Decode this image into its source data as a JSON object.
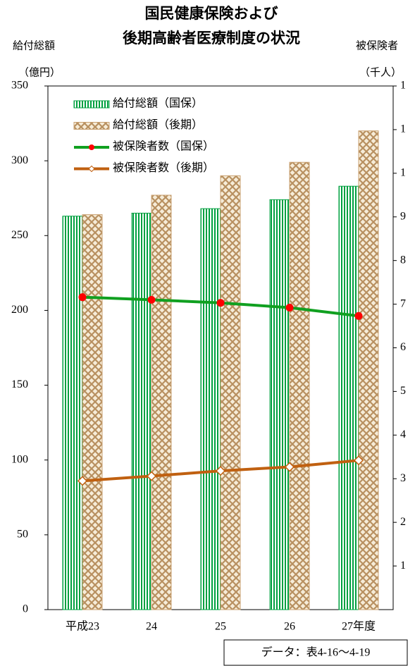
{
  "title": [
    "国民健康保険および",
    "後期高齢者医療制度の状況"
  ],
  "chart_data": {
    "type": "bar",
    "y_label": "給付総額",
    "y_unit": "（億円）",
    "y2_label": "被保険者",
    "y2_unit": "（千人）",
    "categories": [
      "平成23",
      "24",
      "25",
      "26",
      "27年度"
    ],
    "series": [
      {
        "name": "給付総額（国保）",
        "type": "bar",
        "color": "#00a040",
        "values": [
          263,
          265,
          268,
          274,
          283
        ]
      },
      {
        "name": "給付総額（後期）",
        "type": "bar",
        "color": "#c8a070",
        "values": [
          264,
          277,
          290,
          299,
          320
        ]
      },
      {
        "name": "被保険者数（国保）",
        "type": "line",
        "axis": "y2",
        "color": "#10a020",
        "marker_color": "#ff0000",
        "values": [
          7.16,
          7.1,
          7.03,
          6.92,
          6.73
        ]
      },
      {
        "name": "被保険者数（後期）",
        "type": "line",
        "axis": "y2",
        "color": "#c06010",
        "marker_color": "#ffffff",
        "values": [
          2.95,
          3.06,
          3.18,
          3.27,
          3.42
        ]
      }
    ],
    "ylim": [
      0,
      350
    ],
    "yticks": [
      0,
      50,
      100,
      150,
      200,
      250,
      300,
      350
    ],
    "y2lim": [
      0,
      12
    ],
    "y2ticks": [
      1,
      2,
      3,
      4,
      5,
      6,
      7,
      8,
      9,
      {
        "value": 10,
        "label": "1"
      },
      {
        "value": 11,
        "label": "1"
      },
      {
        "value": 12,
        "label": "1"
      }
    ],
    "legend": "upper left"
  },
  "source": "データ：表4-16～4-19"
}
